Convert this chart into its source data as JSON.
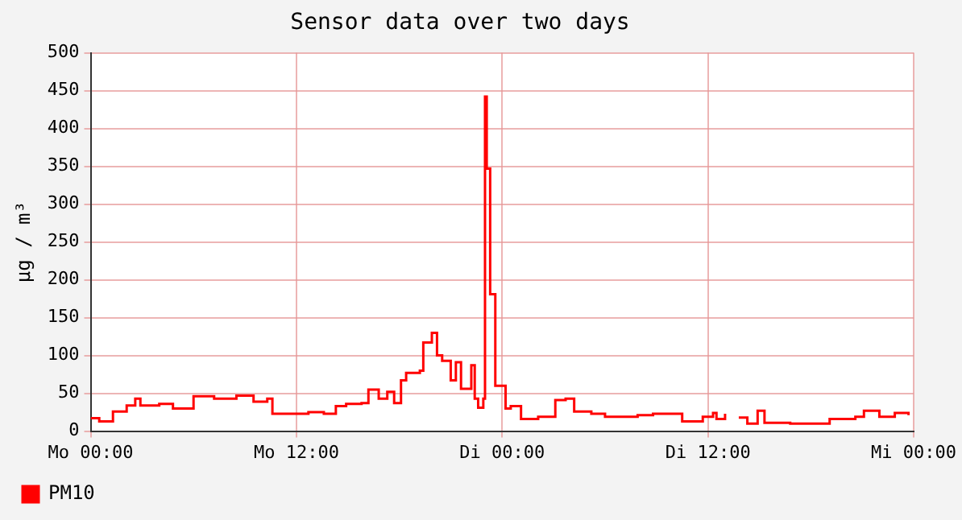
{
  "chart_data": {
    "type": "step",
    "title": "Sensor data over two days",
    "ylabel": "µg / m³",
    "x": [
      "--01-01T00:00",
      "--01-01T00:30",
      "--01-01T01:18",
      "--01-01T02:06",
      "--01-01T02:36",
      "--01-01T02:54",
      "--01-01T04:00",
      "--01-01T04:48",
      "--01-01T06:00",
      "--01-01T07:12",
      "--01-01T08:30",
      "--01-01T09:30",
      "--01-01T10:18",
      "--01-01T10:36",
      "--01-01T11:24",
      "--01-01T12:42",
      "--01-01T13:36",
      "--01-01T14:18",
      "--01-01T14:54",
      "--01-01T15:48",
      "--01-01T16:12",
      "--01-01T16:48",
      "--01-01T17:18",
      "--01-01T17:42",
      "--01-01T18:06",
      "--01-01T18:24",
      "--01-01T19:12",
      "--01-01T19:24",
      "--01-01T19:54",
      "--01-01T20:12",
      "--01-01T20:30",
      "--01-01T21:00",
      "--01-01T21:18",
      "--01-01T21:36",
      "--01-01T22:00",
      "--01-01T22:12",
      "--01-01T22:24",
      "--01-01T22:36",
      "--01-01T22:54",
      "--01-01T23:00",
      "--01-01T23:06",
      "--01-01T23:18",
      "--01-01T23:36",
      "--01-01T23:54",
      "--01-02T00:12",
      "--01-02T00:30",
      "--01-02T01:06",
      "--01-02T02:06",
      "--01-02T03:06",
      "--01-02T03:42",
      "--01-02T04:12",
      "--01-02T05:12",
      "--01-02T06:00",
      "--01-02T07:54",
      "--01-02T08:48",
      "--01-02T10:30",
      "--01-02T11:42",
      "--01-02T12:18",
      "--01-02T12:30",
      "--01-02T13:00",
      "--01-02T13:24",
      "--01-02T13:48",
      "--01-02T14:18",
      "--01-02T14:54",
      "--01-02T15:18",
      "--01-02T16:48",
      "--01-02T19:06",
      "--01-02T20:36",
      "--01-02T21:06",
      "--01-02T22:00",
      "--01-02T22:54",
      "--01-02T23:42"
    ],
    "series": [
      {
        "name": "PM10",
        "color": "#ff0000",
        "values": [
          17,
          13,
          26,
          34,
          43,
          34,
          36,
          30,
          46,
          43,
          47,
          39,
          43,
          23,
          23,
          25,
          23,
          33,
          36,
          37,
          55,
          43,
          52,
          37,
          67,
          77,
          80,
          117,
          130,
          100,
          93,
          67,
          91,
          56,
          56,
          87,
          43,
          31,
          43,
          442,
          347,
          181,
          60,
          60,
          30,
          33,
          16,
          19,
          41,
          43,
          26,
          23,
          19,
          21,
          23,
          13,
          19,
          24,
          16,
          23,
          null,
          18,
          10,
          27,
          11,
          10,
          16,
          19,
          27,
          19,
          24,
          21
        ]
      }
    ],
    "xlim": [
      "--01-01T00:00",
      "--01-03T00:00"
    ],
    "xticks": [
      {
        "value": "--01-01T00:00",
        "label": "Mo 00:00"
      },
      {
        "value": "--01-01T12:00",
        "label": "Mo 12:00"
      },
      {
        "value": "--01-02T00:00",
        "label": "Di 00:00"
      },
      {
        "value": "--01-02T12:00",
        "label": "Di 12:00"
      },
      {
        "value": "--01-03T00:00",
        "label": "Mi 00:00"
      }
    ],
    "ylim": [
      0,
      500
    ],
    "yticks": [
      0,
      50,
      100,
      150,
      200,
      250,
      300,
      350,
      400,
      450,
      500
    ],
    "grid": true,
    "legend": "bottom left"
  }
}
